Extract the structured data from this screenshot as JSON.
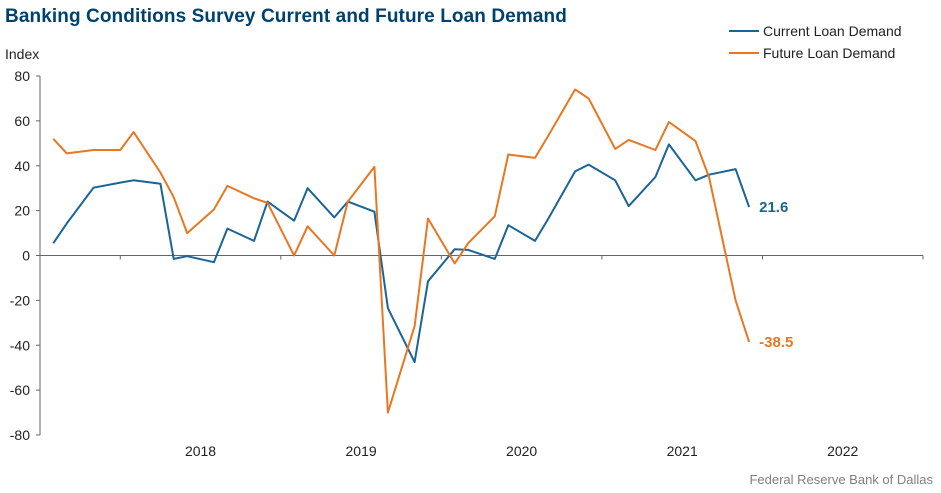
{
  "chart_data": {
    "type": "line",
    "title": "Banking Conditions Survey Current and Future Loan Demand",
    "ylabel": "Index",
    "xlabel": "",
    "ylim": [
      -80,
      80
    ],
    "yticks": [
      80,
      60,
      40,
      20,
      0,
      -20,
      -40,
      -60,
      -80
    ],
    "xlim": [
      2017.5,
      2023.0
    ],
    "year_labels": [
      "2018",
      "2019",
      "2020",
      "2021",
      "2022"
    ],
    "grid": false,
    "legend_position": "top-right",
    "series": [
      {
        "name": "Current Loan Demand",
        "color": "#1a6496",
        "end_label": "21.6",
        "points": [
          [
            2017.583,
            5.5
          ],
          [
            2017.667,
            14.3
          ],
          [
            2017.833,
            30.2
          ],
          [
            2018.0,
            32.5
          ],
          [
            2018.083,
            33.5
          ],
          [
            2018.25,
            32.0
          ],
          [
            2018.333,
            -1.5
          ],
          [
            2018.417,
            -0.3
          ],
          [
            2018.583,
            -3.0
          ],
          [
            2018.667,
            12.0
          ],
          [
            2018.833,
            6.5
          ],
          [
            2018.917,
            24.0
          ],
          [
            2019.083,
            15.5
          ],
          [
            2019.167,
            30.0
          ],
          [
            2019.333,
            17.0
          ],
          [
            2019.417,
            24.0
          ],
          [
            2019.583,
            19.5
          ],
          [
            2019.667,
            -23.5
          ],
          [
            2019.833,
            -47.5
          ],
          [
            2019.917,
            -11.5
          ],
          [
            2020.083,
            2.8
          ],
          [
            2020.167,
            2.5
          ],
          [
            2020.333,
            -1.5
          ],
          [
            2020.417,
            13.5
          ],
          [
            2020.583,
            6.5
          ],
          [
            2020.667,
            16.5
          ],
          [
            2020.833,
            37.5
          ],
          [
            2020.917,
            40.5
          ],
          [
            2021.083,
            33.5
          ],
          [
            2021.167,
            22.0
          ],
          [
            2021.333,
            35.0
          ],
          [
            2021.417,
            49.5
          ],
          [
            2021.583,
            33.5
          ],
          [
            2021.667,
            36.0
          ],
          [
            2021.833,
            38.5
          ],
          [
            2021.917,
            21.6
          ]
        ]
      },
      {
        "name": "Future Loan Demand",
        "color": "#e87722",
        "end_label": "-38.5",
        "points": [
          [
            2017.583,
            52.0
          ],
          [
            2017.667,
            45.5
          ],
          [
            2017.833,
            47.0
          ],
          [
            2018.0,
            47.0
          ],
          [
            2018.083,
            55.0
          ],
          [
            2018.25,
            37.0
          ],
          [
            2018.333,
            26.0
          ],
          [
            2018.417,
            10.0
          ],
          [
            2018.583,
            20.5
          ],
          [
            2018.667,
            31.0
          ],
          [
            2018.833,
            25.5
          ],
          [
            2018.917,
            23.5
          ],
          [
            2019.083,
            0.0
          ],
          [
            2019.167,
            13.0
          ],
          [
            2019.333,
            0.0
          ],
          [
            2019.417,
            24.0
          ],
          [
            2019.583,
            39.5
          ],
          [
            2019.667,
            -70.0
          ],
          [
            2019.833,
            -31.5
          ],
          [
            2019.917,
            16.5
          ],
          [
            2020.083,
            -3.5
          ],
          [
            2020.167,
            5.5
          ],
          [
            2020.333,
            17.5
          ],
          [
            2020.417,
            45.0
          ],
          [
            2020.583,
            43.5
          ],
          [
            2020.667,
            53.5
          ],
          [
            2020.833,
            74.0
          ],
          [
            2020.917,
            70.0
          ],
          [
            2021.083,
            47.5
          ],
          [
            2021.167,
            51.5
          ],
          [
            2021.333,
            47.0
          ],
          [
            2021.417,
            59.5
          ],
          [
            2021.583,
            51.0
          ],
          [
            2021.667,
            35.0
          ],
          [
            2021.833,
            -20.0
          ],
          [
            2021.917,
            -38.5
          ]
        ]
      }
    ]
  },
  "source": "Federal Reserve Bank of Dallas"
}
